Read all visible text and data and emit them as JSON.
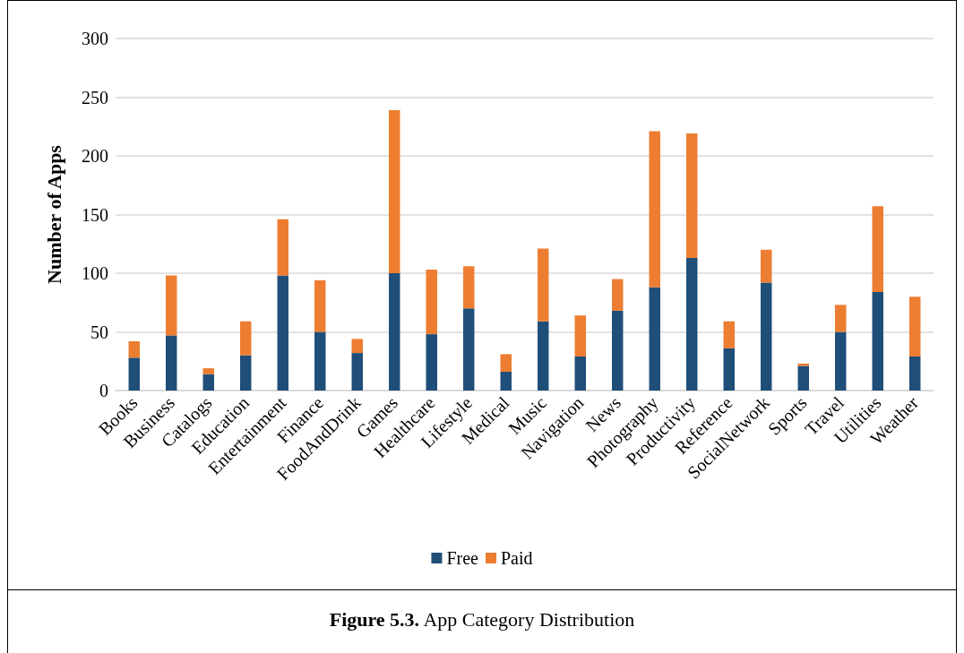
{
  "chart_data": {
    "type": "bar",
    "title": "Figure 5.3. App Category Distribution",
    "ylabel": "Number of Apps",
    "categories": [
      "Books",
      "Business",
      "Catalogs",
      "Education",
      "Entertainment",
      "Finance",
      "FoodAndDrink",
      "Games",
      "Healthcare",
      "Lifestyle",
      "Medical",
      "Music",
      "Navigation",
      "News",
      "Photography",
      "Productivity",
      "Reference",
      "SocialNetwork",
      "Sports",
      "Travel",
      "Utilities",
      "Weather"
    ],
    "series": [
      {
        "name": "Free",
        "color": "#1f4e79",
        "values": [
          28,
          47,
          14,
          30,
          98,
          50,
          32,
          100,
          48,
          70,
          16,
          59,
          29,
          68,
          88,
          113,
          36,
          92,
          21,
          50,
          84,
          29
        ]
      },
      {
        "name": "Paid",
        "color": "#ed7d31",
        "values": [
          14,
          51,
          5,
          29,
          48,
          44,
          12,
          139,
          55,
          36,
          15,
          62,
          35,
          27,
          133,
          106,
          23,
          28,
          2,
          23,
          73,
          51
        ]
      }
    ],
    "stacked": true,
    "ylim": [
      0,
      300
    ],
    "yticks": [
      0,
      50,
      100,
      150,
      200,
      250,
      300
    ],
    "grid": "y",
    "legend": "bottom"
  }
}
